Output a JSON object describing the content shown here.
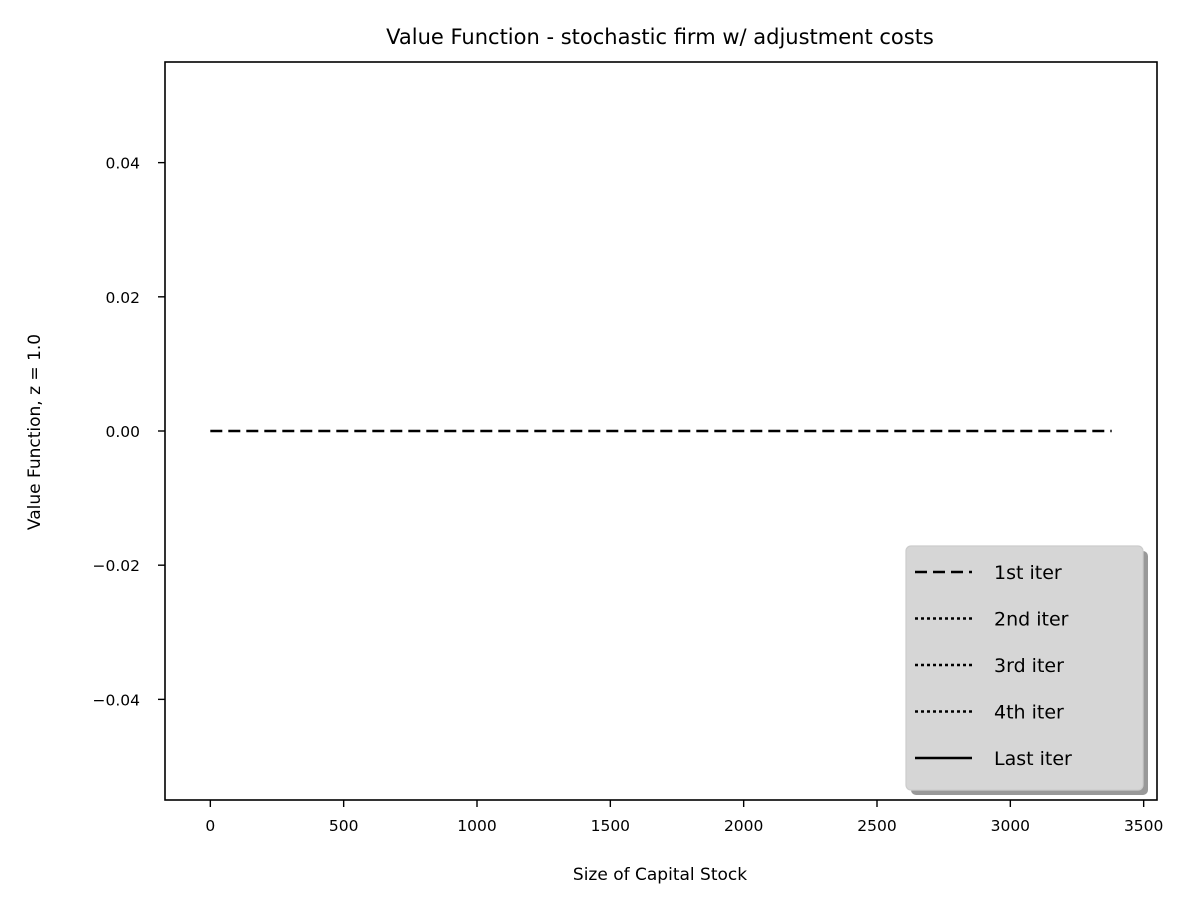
{
  "chart_data": {
    "type": "line",
    "title": "Value Function - stochastic firm w/ adjustment costs",
    "xlabel": "Size of Capital Stock",
    "ylabel": "Value Function, z = 1.0",
    "xlim": [
      -170,
      3550
    ],
    "ylim": [
      -0.055,
      0.055
    ],
    "x_ticks": [
      0,
      500,
      1000,
      1500,
      2000,
      2500,
      3000,
      3500
    ],
    "x_tick_labels": [
      "0",
      "500",
      "1000",
      "1500",
      "2000",
      "2500",
      "3000",
      "3500"
    ],
    "y_ticks": [
      0.04,
      0.02,
      0.0,
      -0.02,
      -0.04
    ],
    "y_tick_labels": [
      "0.04",
      "0.02",
      "0.00",
      "−0.02",
      "−0.04"
    ],
    "grid": false,
    "legend_position": "bottom-right",
    "series": [
      {
        "name": "1st iter",
        "style": "dashed",
        "x": [
          0,
          3380
        ],
        "y": [
          0,
          0
        ]
      },
      {
        "name": "2nd iter",
        "style": "dotted",
        "x": [
          0,
          3380
        ],
        "y": [
          0,
          0
        ]
      },
      {
        "name": "3rd iter",
        "style": "dotted",
        "x": [
          0,
          3380
        ],
        "y": [
          0,
          0
        ]
      },
      {
        "name": "4th iter",
        "style": "dotted",
        "x": [
          0,
          3380
        ],
        "y": [
          0,
          0
        ]
      },
      {
        "name": "Last iter",
        "style": "solid",
        "x": [
          0,
          3380
        ],
        "y": [
          0,
          0
        ]
      }
    ]
  }
}
